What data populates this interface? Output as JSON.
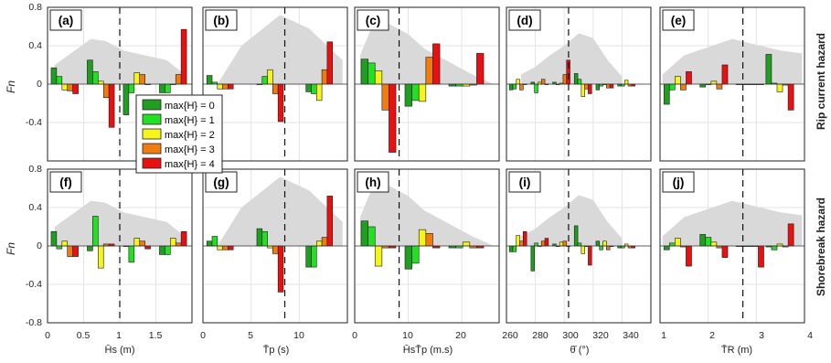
{
  "figure": {
    "y_label": "Fn",
    "row_labels": [
      "Rip current hazard",
      "Shorebreak hazard"
    ],
    "legend": [
      "max{H} = 0",
      "max{H} = 1",
      "max{H} = 2",
      "max{H} = 3",
      "max{H} = 4"
    ],
    "colors": {
      "H0": "#1f9e1f",
      "H1": "#22e022",
      "H2": "#f5f51a",
      "H3": "#f07c10",
      "H4": "#e81010",
      "distribution": "#d9d9d9"
    }
  },
  "chart_data": [
    {
      "panel": "(a)",
      "type": "bar",
      "xlabel": "H̄s (m)",
      "xlim": [
        0,
        2
      ],
      "xticks": [
        "0",
        "0.5",
        "1",
        "1.5"
      ],
      "ylim": [
        -0.8,
        0.8
      ],
      "yticks": [
        "-0.8",
        "-0.4",
        "0",
        "0.4",
        "0.8"
      ],
      "vline": 1.0,
      "bin_width": 0.5,
      "bar_width": 0.075,
      "distribution": {
        "x": [
          0.1,
          0.6,
          0.8,
          1.05,
          1.65,
          1.9
        ],
        "y": [
          0.2,
          0.47,
          0.45,
          0.35,
          0.25,
          0.1
        ]
      },
      "bins": [
        {
          "x0": 0.05,
          "values": [
            0.17,
            0.08,
            -0.06,
            -0.07,
            -0.1
          ]
        },
        {
          "x0": 0.55,
          "values": [
            0.25,
            0.13,
            0.03,
            -0.14,
            -0.45
          ]
        },
        {
          "x0": 1.05,
          "values": [
            -0.32,
            -0.09,
            0.12,
            0.1,
            0.0
          ]
        },
        {
          "x0": 1.55,
          "values": [
            -0.09,
            -0.09,
            0.0,
            0.1,
            0.57
          ]
        }
      ]
    },
    {
      "panel": "(b)",
      "type": "bar",
      "xlabel": "T̄p (s)",
      "xlim": [
        0,
        15
      ],
      "xticks": [
        "0",
        "5",
        "10"
      ],
      "ylim": [
        -0.8,
        0.8
      ],
      "yticks": [
        "-0.8",
        "-0.4",
        "0",
        "0.4",
        "0.8"
      ],
      "vline": 8.5,
      "bin_width": 3.7,
      "bar_width": 0.55,
      "distribution": {
        "x": [
          1.5,
          4,
          8,
          11,
          14.5
        ],
        "y": [
          0.0,
          0.4,
          0.72,
          0.58,
          0.25
        ]
      },
      "bins": [
        {
          "x0": 0.4,
          "values": [
            0.09,
            0.02,
            -0.05,
            -0.05,
            -0.05
          ]
        },
        {
          "x0": 5.6,
          "values": [
            0.0,
            0.08,
            0.15,
            -0.1,
            -0.39
          ]
        },
        {
          "x0": 10.7,
          "values": [
            -0.08,
            -0.1,
            -0.17,
            0.15,
            0.44
          ]
        }
      ]
    },
    {
      "panel": "(c)",
      "type": "bar",
      "xlabel": "H̄sT̄p (m.s)",
      "xlim": [
        0,
        27
      ],
      "xticks": [
        "0",
        "10",
        "20"
      ],
      "ylim": [
        -0.8,
        0.8
      ],
      "yticks": [
        "-0.8",
        "-0.4",
        "0",
        "0.4",
        "0.8"
      ],
      "vline": 8.3,
      "bin_width": 8.4,
      "bar_width": 1.3,
      "distribution": {
        "x": [
          1,
          4,
          8,
          10,
          13,
          17,
          22,
          26
        ],
        "y": [
          0.3,
          0.7,
          0.58,
          0.52,
          0.37,
          0.25,
          0.1,
          0.0
        ]
      },
      "bins": [
        {
          "x0": 1.2,
          "values": [
            0.26,
            0.22,
            0.14,
            -0.27,
            -0.71
          ]
        },
        {
          "x0": 9.4,
          "values": [
            -0.23,
            -0.17,
            -0.18,
            0.28,
            0.42
          ]
        },
        {
          "x0": 17.6,
          "values": [
            -0.02,
            -0.02,
            -0.02,
            -0.01,
            0.32
          ]
        }
      ]
    },
    {
      "panel": "(d)",
      "type": "bar",
      "xlabel": "θ̄ (°)",
      "xlim": [
        260,
        360
      ],
      "xticks": [
        "260",
        "280",
        "300",
        "320",
        "340"
      ],
      "ylim": [
        -0.8,
        0.8
      ],
      "yticks": [
        "-0.8",
        "-0.4",
        "0",
        "0.4",
        "0.8"
      ],
      "vline": 303,
      "bin_width": 15.2,
      "bar_width": 2.4,
      "distribution": {
        "x": [
          270,
          280,
          290,
          300,
          310,
          320,
          330,
          340
        ],
        "y": [
          0.1,
          0.18,
          0.3,
          0.4,
          0.53,
          0.48,
          0.25,
          0.08
        ]
      },
      "bins": [
        {
          "x0": 262,
          "values": [
            -0.06,
            -0.05,
            0.05,
            -0.06,
            0.0
          ]
        },
        {
          "x0": 277,
          "values": [
            0.02,
            -0.09,
            0.02,
            0.05,
            0.0
          ]
        },
        {
          "x0": 292,
          "values": [
            0.02,
            0.0,
            0.01,
            0.1,
            0.25
          ]
        },
        {
          "x0": 307,
          "values": [
            0.11,
            0.05,
            -0.13,
            -0.05,
            -0.1
          ]
        },
        {
          "x0": 322,
          "values": [
            -0.06,
            -0.02,
            0.0,
            -0.04,
            -0.04
          ]
        },
        {
          "x0": 337,
          "values": [
            -0.02,
            -0.02,
            0.04,
            -0.02,
            -0.02
          ]
        }
      ]
    },
    {
      "panel": "(e)",
      "type": "bar",
      "xlabel": "T̄R (m)",
      "xlim": [
        1,
        4
      ],
      "xticks": [
        "1",
        "2",
        "3",
        "4"
      ],
      "ylim": [
        -0.8,
        0.8
      ],
      "yticks": [
        "-0.8",
        "-0.4",
        "0",
        "0.4",
        "0.8"
      ],
      "vline": 2.72,
      "bin_width": 0.75,
      "bar_width": 0.115,
      "distribution": {
        "x": [
          1.05,
          1.5,
          2.5,
          3.5,
          3.95
        ],
        "y": [
          0.1,
          0.3,
          0.47,
          0.35,
          0.32
        ]
      },
      "bins": [
        {
          "x0": 1.08,
          "values": [
            -0.21,
            -0.06,
            0.08,
            -0.06,
            0.13
          ]
        },
        {
          "x0": 1.83,
          "values": [
            -0.03,
            0.0,
            0.03,
            -0.05,
            0.2
          ]
        },
        {
          "x0": 2.58,
          "values": [
            0.0,
            0.0,
            0.0,
            0.0,
            0.0
          ]
        },
        {
          "x0": 3.2,
          "values": [
            0.31,
            0.01,
            -0.08,
            -0.01,
            -0.27
          ]
        }
      ]
    },
    {
      "panel": "(f)",
      "type": "bar",
      "xlabel": "H̄s (m)",
      "xlim": [
        0,
        2
      ],
      "xticks": [
        "0",
        "0.5",
        "1",
        "1.5"
      ],
      "ylim": [
        -0.8,
        0.8
      ],
      "yticks": [
        "-0.8",
        "-0.4",
        "0",
        "0.4",
        "0.8"
      ],
      "vline": 1.0,
      "bin_width": 0.5,
      "bar_width": 0.075,
      "distribution": {
        "x": [
          0.1,
          0.6,
          0.8,
          1.05,
          1.65,
          1.9
        ],
        "y": [
          0.2,
          0.47,
          0.45,
          0.35,
          0.25,
          0.1
        ]
      },
      "bins": [
        {
          "x0": 0.05,
          "values": [
            0.15,
            -0.03,
            0.05,
            -0.11,
            -0.11
          ]
        },
        {
          "x0": 0.55,
          "values": [
            -0.05,
            0.31,
            -0.23,
            0.02,
            0.02
          ]
        },
        {
          "x0": 1.05,
          "values": [
            0.0,
            -0.17,
            0.08,
            0.05,
            -0.03
          ]
        },
        {
          "x0": 1.55,
          "values": [
            -0.09,
            -0.09,
            0.08,
            0.03,
            0.15
          ]
        }
      ]
    },
    {
      "panel": "(g)",
      "type": "bar",
      "xlabel": "T̄p (s)",
      "xlim": [
        0,
        15
      ],
      "xticks": [
        "0",
        "5",
        "10"
      ],
      "ylim": [
        -0.8,
        0.8
      ],
      "yticks": [
        "-0.8",
        "-0.4",
        "0",
        "0.4",
        "0.8"
      ],
      "vline": 8.5,
      "bin_width": 3.7,
      "bar_width": 0.55,
      "distribution": {
        "x": [
          1.5,
          4,
          8,
          11,
          14.5
        ],
        "y": [
          0.0,
          0.4,
          0.72,
          0.58,
          0.25
        ]
      },
      "bins": [
        {
          "x0": 0.4,
          "values": [
            0.05,
            0.1,
            -0.04,
            -0.04,
            -0.04
          ]
        },
        {
          "x0": 5.6,
          "values": [
            0.18,
            0.15,
            -0.02,
            -0.08,
            -0.48
          ]
        },
        {
          "x0": 10.7,
          "values": [
            -0.22,
            -0.22,
            0.05,
            0.09,
            0.52
          ]
        }
      ]
    },
    {
      "panel": "(h)",
      "type": "bar",
      "xlabel": "H̄sT̄p (m.s)",
      "xlim": [
        0,
        27
      ],
      "xticks": [
        "0",
        "10",
        "20"
      ],
      "ylim": [
        -0.8,
        0.8
      ],
      "yticks": [
        "-0.8",
        "-0.4",
        "0",
        "0.4",
        "0.8"
      ],
      "vline": 8.3,
      "bin_width": 8.4,
      "bar_width": 1.3,
      "distribution": {
        "x": [
          1,
          4,
          8,
          10,
          13,
          17,
          22,
          26
        ],
        "y": [
          0.3,
          0.7,
          0.58,
          0.52,
          0.37,
          0.25,
          0.1,
          0.0
        ]
      },
      "bins": [
        {
          "x0": 1.2,
          "values": [
            0.26,
            0.2,
            -0.21,
            -0.02,
            -0.02
          ]
        },
        {
          "x0": 9.4,
          "values": [
            -0.24,
            -0.18,
            0.17,
            0.13,
            -0.02
          ]
        },
        {
          "x0": 17.6,
          "values": [
            -0.02,
            -0.02,
            0.04,
            -0.02,
            -0.02
          ]
        }
      ]
    },
    {
      "panel": "(i)",
      "type": "bar",
      "xlabel": "θ̄ (°)",
      "xlim": [
        260,
        360
      ],
      "xticks": [
        "260",
        "280",
        "300",
        "320",
        "340"
      ],
      "ylim": [
        -0.8,
        0.8
      ],
      "yticks": [
        "-0.8",
        "-0.4",
        "0",
        "0.4",
        "0.8"
      ],
      "vline": 303,
      "bin_width": 15.2,
      "bar_width": 2.4,
      "distribution": {
        "x": [
          270,
          280,
          290,
          300,
          310,
          320,
          330,
          340
        ],
        "y": [
          0.1,
          0.18,
          0.3,
          0.4,
          0.53,
          0.48,
          0.25,
          0.08
        ]
      },
      "bins": [
        {
          "x0": 262,
          "values": [
            -0.06,
            -0.06,
            0.11,
            0.05,
            0.15
          ]
        },
        {
          "x0": 277,
          "values": [
            -0.26,
            0.03,
            0.0,
            0.05,
            0.08
          ]
        },
        {
          "x0": 292,
          "values": [
            0.02,
            0.0,
            0.04,
            0.05,
            0.0
          ]
        },
        {
          "x0": 307,
          "values": [
            0.21,
            0.03,
            -0.08,
            0.0,
            -0.2
          ]
        },
        {
          "x0": 322,
          "values": [
            0.05,
            -0.04,
            0.05,
            -0.04,
            0.0
          ]
        },
        {
          "x0": 337,
          "values": [
            -0.02,
            -0.02,
            0.02,
            -0.02,
            -0.02
          ]
        }
      ]
    },
    {
      "panel": "(j)",
      "type": "bar",
      "xlabel": "T̄R (m)",
      "xlim": [
        1,
        4
      ],
      "xticks": [
        "1",
        "2",
        "3",
        "4"
      ],
      "ylim": [
        -0.8,
        0.8
      ],
      "yticks": [
        "-0.8",
        "-0.4",
        "0",
        "0.4",
        "0.8"
      ],
      "vline": 2.72,
      "bin_width": 0.75,
      "bar_width": 0.115,
      "distribution": {
        "x": [
          1.05,
          1.5,
          2.5,
          3.5,
          3.95
        ],
        "y": [
          0.1,
          0.3,
          0.47,
          0.35,
          0.32
        ]
      },
      "bins": [
        {
          "x0": 1.08,
          "values": [
            -0.04,
            0.03,
            0.08,
            -0.01,
            -0.21
          ]
        },
        {
          "x0": 1.83,
          "values": [
            0.12,
            0.09,
            0.04,
            -0.02,
            -0.12
          ]
        },
        {
          "x0": 2.58,
          "values": [
            0.0,
            0.0,
            0.0,
            0.0,
            -0.22
          ]
        },
        {
          "x0": 3.2,
          "values": [
            -0.01,
            -0.04,
            0.02,
            -0.01,
            0.23
          ]
        }
      ]
    }
  ]
}
